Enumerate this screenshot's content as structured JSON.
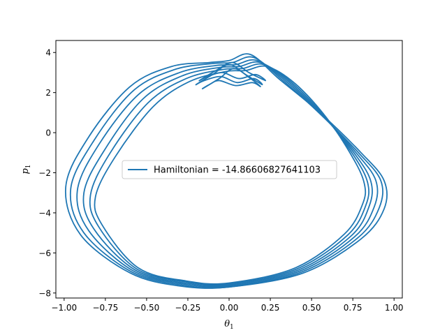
{
  "chart_data": {
    "type": "line",
    "title": "",
    "xlabel": "θ",
    "xlabel_sub": "1",
    "ylabel": "p",
    "ylabel_sub": "1",
    "xlim": [
      -1.05,
      1.05
    ],
    "ylim": [
      -8.25,
      4.6
    ],
    "xticks": [
      -1.0,
      -0.75,
      -0.5,
      -0.25,
      0.0,
      0.25,
      0.5,
      0.75,
      1.0
    ],
    "xtick_labels": [
      "−1.00",
      "−0.75",
      "−0.50",
      "−0.25",
      "0.00",
      "0.25",
      "0.50",
      "0.75",
      "1.00"
    ],
    "yticks": [
      -8,
      -6,
      -4,
      -2,
      0,
      2,
      4
    ],
    "ytick_labels": [
      "−8",
      "−6",
      "−4",
      "−2",
      "0",
      "2",
      "4"
    ],
    "grid": false,
    "legend_position": "center",
    "series_color": "#1f77b4",
    "series": [
      {
        "name": "Hamiltonian = -14.86606827641103",
        "loops": [
          {
            "x": [
              0.0,
              0.45,
              0.8,
              0.94,
              0.94,
              0.8,
              0.55,
              0.3,
              0.13,
              0.0,
              -0.12,
              -0.35,
              -0.6,
              -0.85,
              -0.99,
              -0.9,
              -0.6,
              -0.3,
              0.0
            ],
            "y": [
              -7.7,
              -7.0,
              -5.3,
              -3.8,
              -2.4,
              -1.0,
              1.0,
              2.7,
              3.9,
              3.6,
              3.5,
              3.3,
              2.3,
              -0.2,
              -2.7,
              -5.1,
              -7.0,
              -7.65,
              -7.7
            ]
          },
          {
            "x": [
              0.0,
              0.44,
              0.78,
              0.91,
              0.92,
              0.79,
              0.55,
              0.32,
              0.15,
              0.02,
              -0.1,
              -0.33,
              -0.58,
              -0.82,
              -0.96,
              -0.88,
              -0.59,
              -0.29,
              0.0
            ],
            "y": [
              -7.7,
              -6.95,
              -5.25,
              -3.75,
              -2.4,
              -1.05,
              0.95,
              2.65,
              3.75,
              3.5,
              3.45,
              3.15,
              2.1,
              -0.4,
              -2.8,
              -5.0,
              -6.95,
              -7.6,
              -7.7
            ]
          },
          {
            "x": [
              0.0,
              0.43,
              0.76,
              0.88,
              0.89,
              0.78,
              0.56,
              0.34,
              0.17,
              0.04,
              -0.08,
              -0.3,
              -0.55,
              -0.79,
              -0.92,
              -0.85,
              -0.58,
              -0.28,
              0.0
            ],
            "y": [
              -7.65,
              -6.9,
              -5.2,
              -3.7,
              -2.4,
              -1.1,
              0.9,
              2.6,
              3.6,
              3.4,
              3.35,
              3.0,
              1.9,
              -0.6,
              -2.9,
              -4.9,
              -6.9,
              -7.55,
              -7.65
            ]
          },
          {
            "x": [
              0.0,
              0.42,
              0.74,
              0.85,
              0.86,
              0.77,
              0.57,
              0.36,
              0.19,
              0.06,
              -0.06,
              -0.28,
              -0.52,
              -0.75,
              -0.88,
              -0.82,
              -0.57,
              -0.27,
              0.0
            ],
            "y": [
              -7.6,
              -6.85,
              -5.15,
              -3.65,
              -2.45,
              -1.15,
              0.85,
              2.55,
              3.5,
              3.3,
              3.25,
              2.85,
              1.7,
              -0.8,
              -3.0,
              -4.8,
              -6.85,
              -7.5,
              -7.6
            ]
          },
          {
            "x": [
              0.0,
              0.41,
              0.72,
              0.83,
              0.84,
              0.76,
              0.58,
              0.38,
              0.21,
              0.08,
              -0.04,
              -0.26,
              -0.49,
              -0.72,
              -0.84,
              -0.79,
              -0.56,
              -0.26,
              0.0
            ],
            "y": [
              -7.55,
              -6.8,
              -5.1,
              -3.6,
              -2.5,
              -1.2,
              0.8,
              2.5,
              3.4,
              3.2,
              3.15,
              2.7,
              1.5,
              -1.0,
              -3.1,
              -4.7,
              -6.8,
              -7.45,
              -7.55
            ]
          },
          {
            "x": [
              0.0,
              0.4,
              0.7,
              0.81,
              0.82,
              0.75,
              0.59,
              0.4,
              0.23,
              0.1,
              -0.02,
              -0.24,
              -0.46,
              -0.69,
              -0.81,
              -0.77,
              -0.55,
              -0.26,
              0.0
            ],
            "y": [
              -7.5,
              -6.75,
              -5.05,
              -3.55,
              -2.55,
              -1.25,
              0.75,
              2.45,
              3.3,
              3.1,
              3.05,
              2.55,
              1.3,
              -1.2,
              -3.2,
              -4.6,
              -6.75,
              -7.4,
              -7.5
            ]
          }
        ],
        "cusp_loops": [
          {
            "x": [
              -0.2,
              -0.1,
              0.0,
              0.1,
              0.2,
              0.15,
              0.05,
              -0.05,
              -0.15,
              -0.2
            ],
            "y": [
              2.4,
              2.9,
              3.4,
              2.9,
              2.4,
              2.7,
              2.5,
              2.8,
              2.6,
              2.4
            ]
          },
          {
            "x": [
              -0.18,
              -0.08,
              0.02,
              0.12,
              0.22,
              0.16,
              0.06,
              -0.04,
              -0.13,
              -0.18
            ],
            "y": [
              2.6,
              3.1,
              3.5,
              3.0,
              2.6,
              2.9,
              2.7,
              3.0,
              2.8,
              2.6
            ]
          },
          {
            "x": [
              -0.16,
              -0.06,
              0.03,
              0.13,
              0.19,
              0.14,
              0.04,
              -0.06,
              -0.12,
              -0.16
            ],
            "y": [
              2.2,
              2.7,
              3.2,
              2.7,
              2.3,
              2.5,
              2.35,
              2.6,
              2.4,
              2.2
            ]
          }
        ]
      }
    ]
  }
}
